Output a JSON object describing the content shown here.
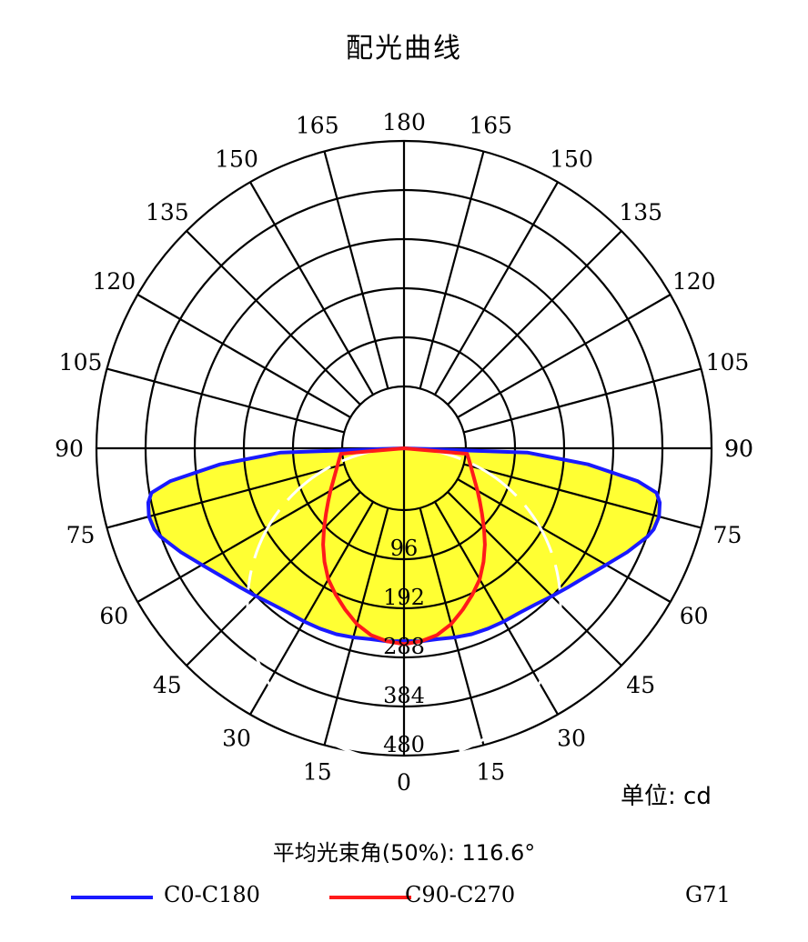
{
  "title": "配光曲线",
  "unit_label": "单位: cd",
  "beam_angle_label": "平均光束角(50%): 116.6°",
  "model": "G71",
  "colors": {
    "c0": "#1a1aff",
    "c90": "#ff1a1a",
    "fill": "#ffff33",
    "grid": "#000000"
  },
  "chart_data": {
    "type": "polar",
    "title": "配光曲线",
    "radial_unit": "cd",
    "radial_ticks": [
      96,
      192,
      288,
      384,
      480
    ],
    "r_max": 480,
    "angle_ticks_left": [
      0,
      15,
      30,
      45,
      60,
      75,
      90,
      105,
      120,
      135,
      150,
      165,
      180
    ],
    "angle_ticks_right": [
      15,
      30,
      45,
      60,
      75,
      90,
      105,
      120,
      135,
      150,
      165
    ],
    "series": [
      {
        "name": "C0-C180",
        "color": "#1a1aff",
        "angles": [
          0,
          5,
          10,
          15,
          20,
          25,
          30,
          35,
          40,
          45,
          50,
          55,
          60,
          65,
          70,
          72,
          75,
          78,
          80,
          82,
          85,
          88,
          90
        ],
        "values": [
          256,
          258,
          258,
          262,
          266,
          268,
          270,
          272,
          278,
          288,
          300,
          315,
          335,
          360,
          385,
          392,
          395,
          390,
          380,
          340,
          240,
          120,
          0
        ]
      },
      {
        "name": "C90-C270",
        "color": "#ff1a1a",
        "angles": [
          0,
          5,
          10,
          15,
          20,
          25,
          30,
          35,
          40,
          45,
          50,
          55,
          60,
          65,
          70,
          75,
          80,
          85,
          90
        ],
        "values": [
          262,
          258,
          250,
          235,
          215,
          195,
          175,
          150,
          125,
          100,
          78,
          60,
          45,
          32,
          22,
          14,
          8,
          3,
          0
        ]
      }
    ],
    "beam_angle_deg": 116.6
  }
}
